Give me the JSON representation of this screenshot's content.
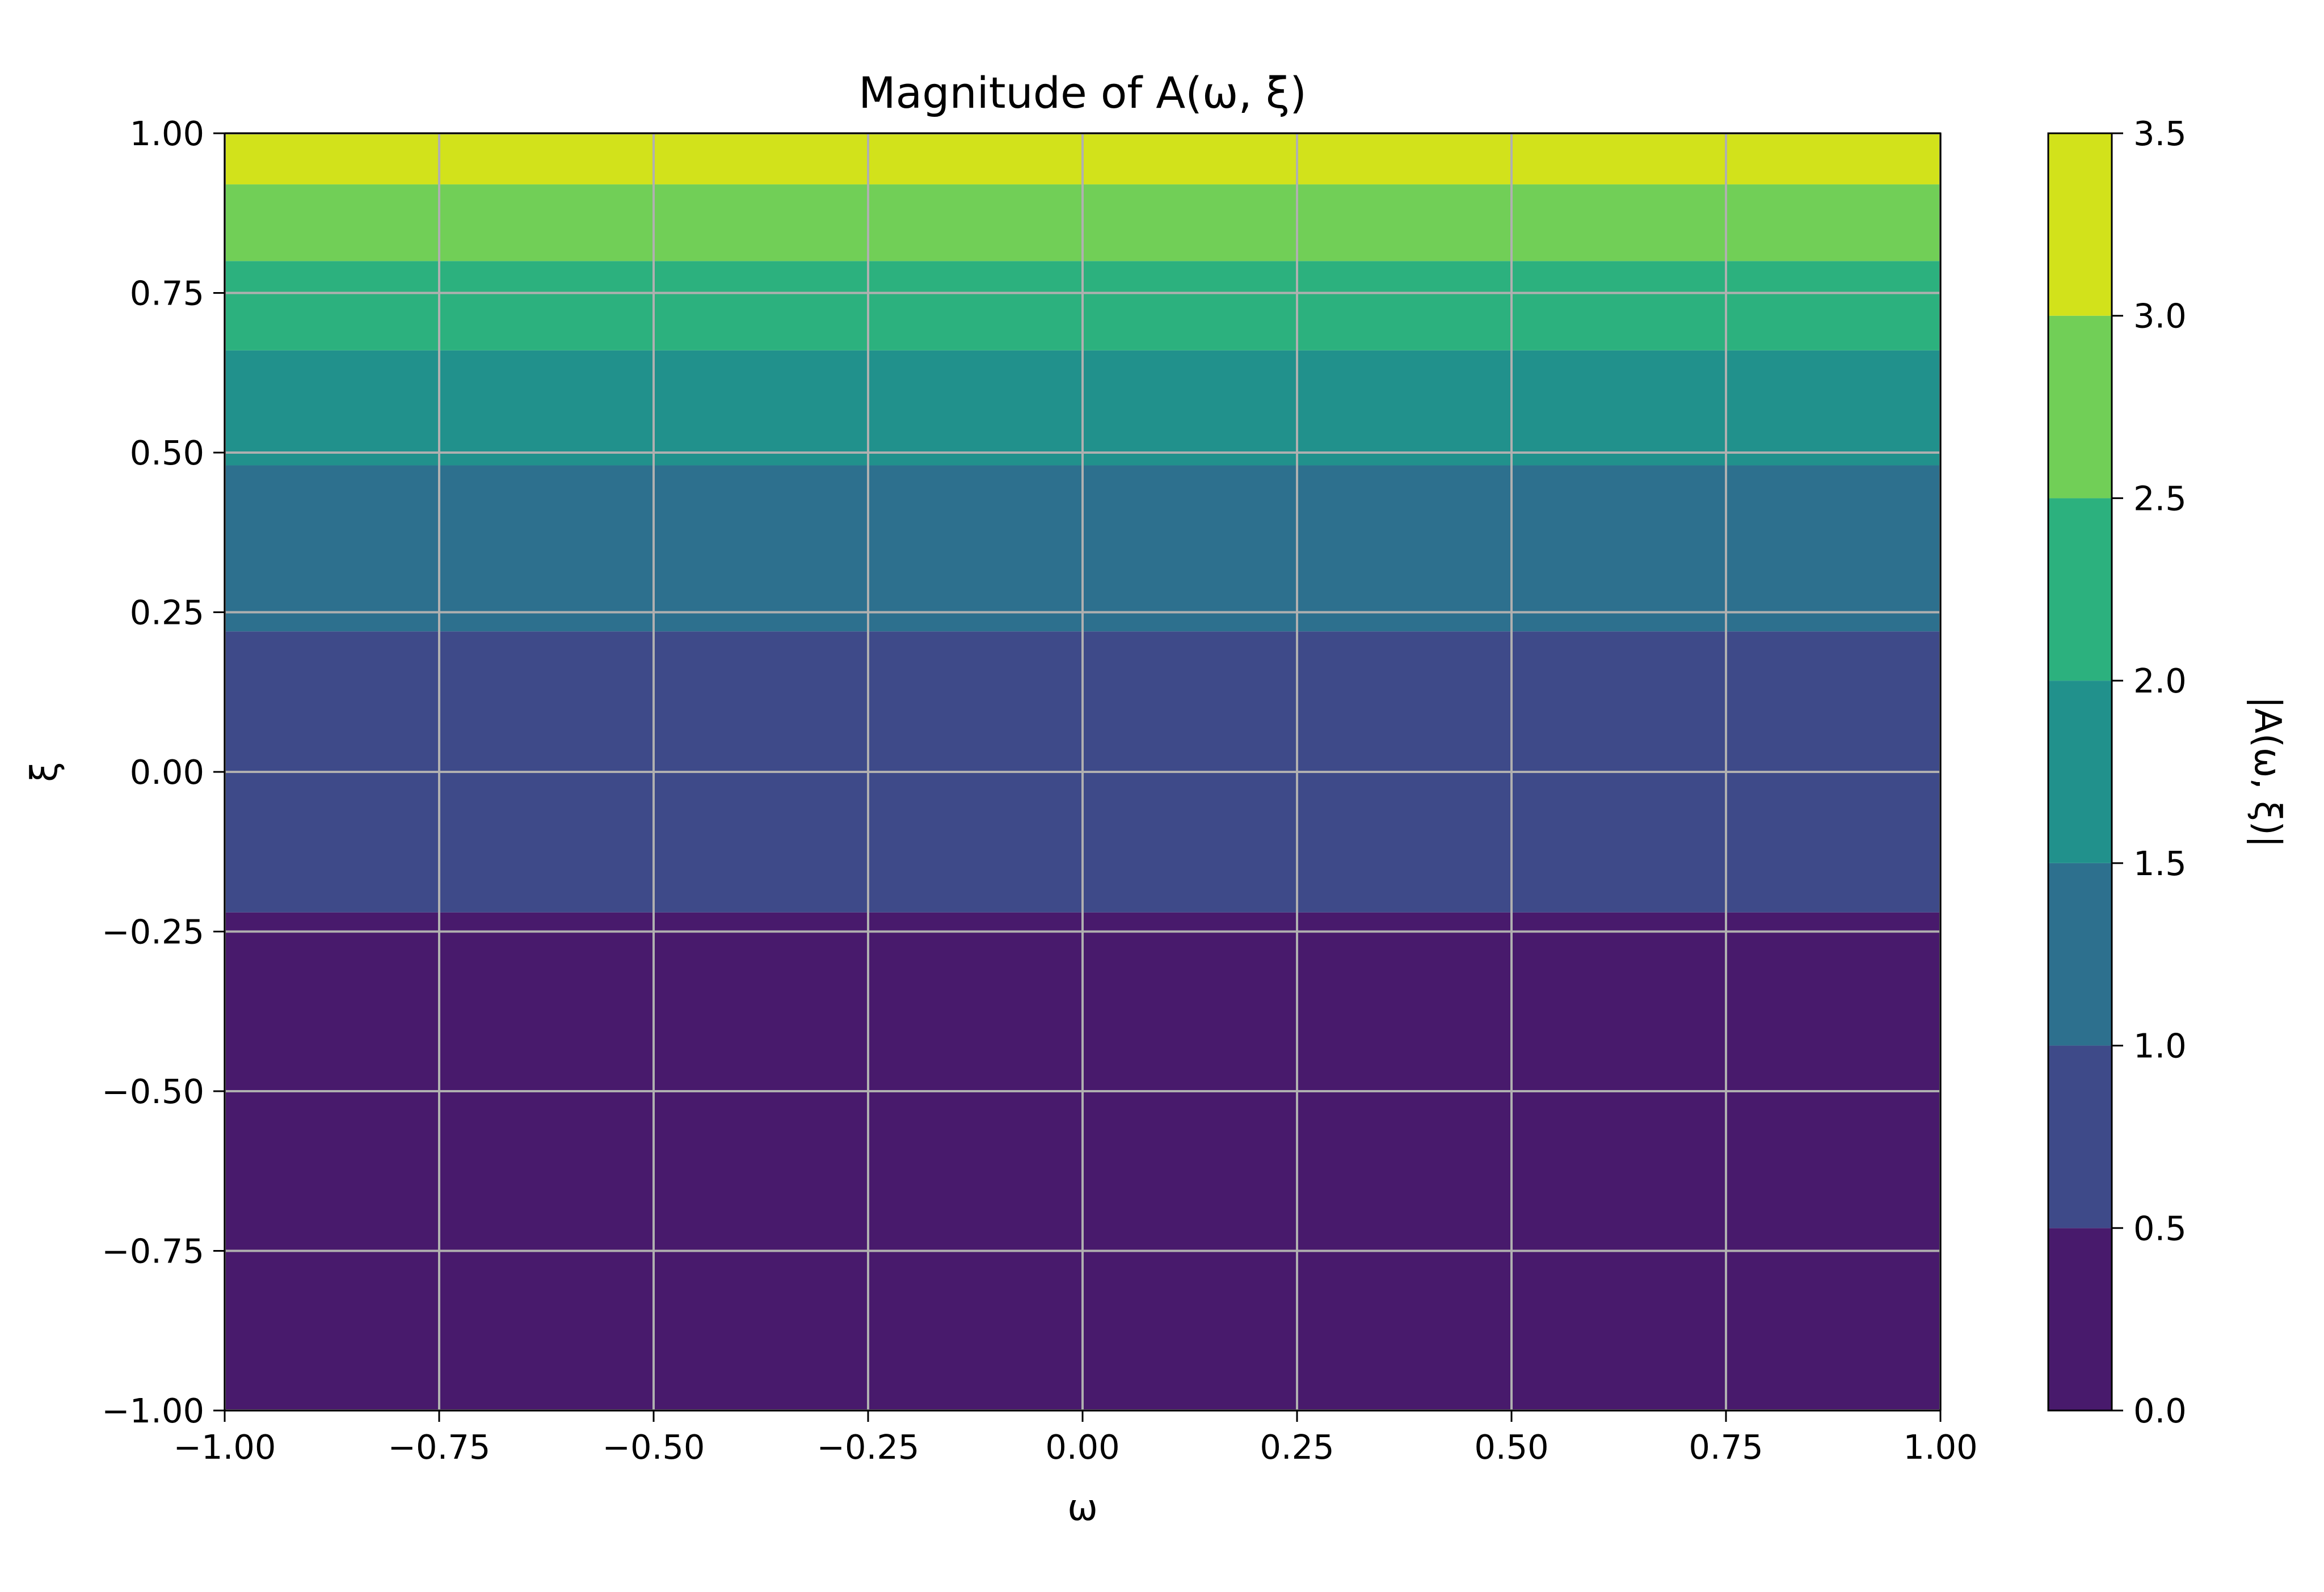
{
  "chart_data": {
    "type": "heatmap",
    "title": "Magnitude of A(ω, ξ)",
    "xlabel": "ω",
    "ylabel": "ξ",
    "colorbar_label": "|A(ω, ξ)|",
    "xlim": [
      -1.0,
      1.0
    ],
    "ylim": [
      -1.0,
      1.0
    ],
    "grid": true,
    "x_ticks": [
      -1.0,
      -0.75,
      -0.5,
      -0.25,
      0.0,
      0.25,
      0.5,
      0.75,
      1.0
    ],
    "x_tick_labels": [
      "−1.00",
      "−0.75",
      "−0.50",
      "−0.25",
      "0.00",
      "0.25",
      "0.50",
      "0.75",
      "1.00"
    ],
    "y_ticks": [
      -1.0,
      -0.75,
      -0.5,
      -0.25,
      0.0,
      0.25,
      0.5,
      0.75,
      1.0
    ],
    "y_tick_labels": [
      "−1.00",
      "−0.75",
      "−0.50",
      "−0.25",
      "0.00",
      "0.25",
      "0.50",
      "0.75",
      "1.00"
    ],
    "colorbar_levels": [
      0.0,
      0.5,
      1.0,
      1.5,
      2.0,
      2.5,
      3.0,
      3.5
    ],
    "colorbar_tick_labels": [
      "0.0",
      "0.5",
      "1.0",
      "1.5",
      "2.0",
      "2.5",
      "3.0",
      "3.5"
    ],
    "level_colors": [
      "#481a6c",
      "#3e4a89",
      "#2d708e",
      "#21918c",
      "#2cb17e",
      "#71cf57",
      "#d2e21b"
    ],
    "bands": [
      {
        "xi_from": -1.0,
        "xi_to": -0.22,
        "level_from": 0.0,
        "level_to": 0.5
      },
      {
        "xi_from": -0.22,
        "xi_to": 0.22,
        "level_from": 0.5,
        "level_to": 1.0
      },
      {
        "xi_from": 0.22,
        "xi_to": 0.48,
        "level_from": 1.0,
        "level_to": 1.5
      },
      {
        "xi_from": 0.48,
        "xi_to": 0.66,
        "level_from": 1.5,
        "level_to": 2.0
      },
      {
        "xi_from": 0.66,
        "xi_to": 0.8,
        "level_from": 2.0,
        "level_to": 2.5
      },
      {
        "xi_from": 0.8,
        "xi_to": 0.92,
        "level_from": 2.5,
        "level_to": 3.0
      },
      {
        "xi_from": 0.92,
        "xi_to": 1.0,
        "level_from": 3.0,
        "level_to": 3.5
      }
    ]
  }
}
